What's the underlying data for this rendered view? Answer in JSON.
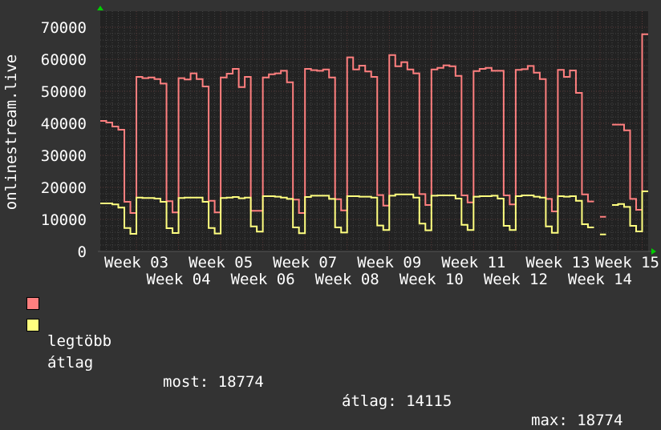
{
  "chart_data": {
    "type": "line",
    "step": true,
    "ylabel": "onlinestream.live",
    "ylim": [
      0,
      70000
    ],
    "y_ticks": [
      "0",
      "10000",
      "20000",
      "30000",
      "40000",
      "50000",
      "60000",
      "70000"
    ],
    "x_ticks": [
      "Week 03",
      "Week 04",
      "Week 05",
      "Week 06",
      "Week 07",
      "Week 08",
      "Week 09",
      "Week 10",
      "Week 11",
      "Week 12",
      "Week 13",
      "Week 14",
      "Week 15"
    ],
    "grid": true,
    "background": "#222222",
    "series": [
      {
        "name": "legtöbb",
        "color": "#ff7f7f",
        "values": [
          40750,
          40250,
          39000,
          38000,
          15500,
          12000,
          54500,
          54100,
          54300,
          53800,
          52400,
          15700,
          12200,
          54100,
          53700,
          55600,
          53800,
          51500,
          15800,
          12200,
          54300,
          55500,
          57000,
          51300,
          54500,
          12700,
          12700,
          54300,
          55300,
          55600,
          56400,
          52800,
          16200,
          12000,
          57000,
          56600,
          56400,
          56800,
          54300,
          16300,
          12800,
          60600,
          56800,
          58000,
          56200,
          54500,
          17600,
          14300,
          61300,
          57800,
          59100,
          56800,
          55600,
          17900,
          14500,
          56800,
          57300,
          58100,
          57800,
          54800,
          17500,
          15300,
          56300,
          57000,
          57300,
          56400,
          56400,
          17500,
          14700,
          56700,
          56900,
          57900,
          55800,
          53800,
          16400,
          12500,
          56700,
          54500,
          56500,
          49500,
          17800,
          15600,
          null,
          10800,
          null,
          39600,
          39600,
          37800,
          16400,
          13000,
          67800
        ]
      },
      {
        "name": "átlag",
        "color": "#ffff7f",
        "values": [
          15000,
          15000,
          14700,
          13700,
          7300,
          5500,
          16800,
          16700,
          16700,
          16500,
          15500,
          7250,
          5750,
          16700,
          16800,
          16800,
          16800,
          15500,
          7300,
          5600,
          16700,
          16800,
          17000,
          16600,
          16800,
          7800,
          6200,
          17250,
          17250,
          17100,
          16800,
          16400,
          7500,
          5700,
          17000,
          17400,
          17400,
          17400,
          16400,
          7500,
          5900,
          17250,
          17250,
          17100,
          17100,
          16800,
          8100,
          6700,
          17400,
          17800,
          17800,
          17800,
          16800,
          8700,
          6600,
          17400,
          17500,
          17500,
          17500,
          16500,
          8300,
          6700,
          17100,
          17250,
          17250,
          17400,
          16500,
          8000,
          6700,
          17250,
          17500,
          17500,
          17100,
          16800,
          7800,
          5800,
          17250,
          17100,
          17250,
          15800,
          8500,
          7500,
          null,
          5300,
          null,
          14500,
          14800,
          13900,
          8000,
          6250,
          18774
        ]
      }
    ],
    "legend": {
      "items": [
        {
          "label": "legtöbb",
          "color": "#ff7f7f"
        },
        {
          "label": "átlag",
          "color": "#ffff7f"
        }
      ],
      "stats": {
        "most": "most: 18774",
        "atlag": "átlag: 14115",
        "max": "max: 18774"
      }
    }
  }
}
